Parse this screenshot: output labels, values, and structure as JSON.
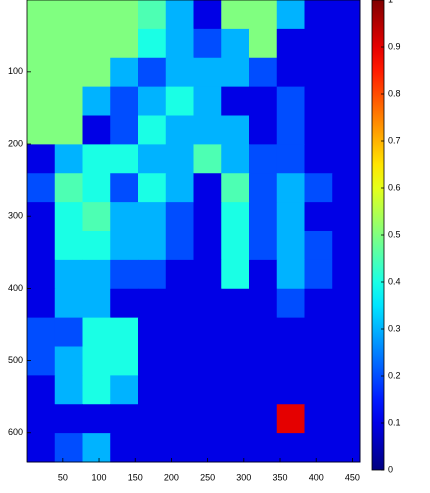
{
  "chart_data": {
    "type": "heatmap",
    "colormap": "jet",
    "xlim": [
      0.5,
      460.5
    ],
    "ylim": [
      0.5,
      640.5
    ],
    "y_reversed": true,
    "xticks": [
      50,
      100,
      150,
      200,
      250,
      300,
      350,
      400,
      450
    ],
    "yticks": [
      100,
      200,
      300,
      400,
      500,
      600
    ],
    "clim": [
      0,
      1
    ],
    "cticks": [
      0,
      0.1,
      0.2,
      0.3,
      0.4,
      0.5,
      0.6,
      0.7,
      0.8,
      0.9,
      1
    ],
    "z": [
      [
        0.5,
        0.5,
        0.5,
        0.5,
        0.45,
        0.3,
        0.1,
        0.5,
        0.5,
        0.3,
        0.1,
        0.1
      ],
      [
        0.5,
        0.5,
        0.5,
        0.5,
        0.4,
        0.3,
        0.2,
        0.3,
        0.5,
        0.1,
        0.1,
        0.1
      ],
      [
        0.5,
        0.5,
        0.5,
        0.3,
        0.2,
        0.3,
        0.3,
        0.3,
        0.2,
        0.1,
        0.1,
        0.1
      ],
      [
        0.5,
        0.5,
        0.3,
        0.2,
        0.3,
        0.4,
        0.3,
        0.1,
        0.1,
        0.2,
        0.1,
        0.1
      ],
      [
        0.5,
        0.5,
        0.1,
        0.2,
        0.4,
        0.3,
        0.3,
        0.3,
        0.1,
        0.2,
        0.1,
        0.1
      ],
      [
        0.1,
        0.3,
        0.4,
        0.4,
        0.3,
        0.3,
        0.45,
        0.3,
        0.2,
        0.2,
        0.1,
        0.1
      ],
      [
        0.2,
        0.45,
        0.4,
        0.2,
        0.4,
        0.3,
        0.1,
        0.45,
        0.2,
        0.3,
        0.2,
        0.1
      ],
      [
        0.1,
        0.4,
        0.45,
        0.3,
        0.3,
        0.2,
        0.1,
        0.4,
        0.2,
        0.3,
        0.1,
        0.1
      ],
      [
        0.1,
        0.4,
        0.4,
        0.3,
        0.3,
        0.2,
        0.1,
        0.4,
        0.2,
        0.3,
        0.2,
        0.1
      ],
      [
        0.1,
        0.3,
        0.3,
        0.2,
        0.2,
        0.1,
        0.1,
        0.4,
        0.1,
        0.3,
        0.2,
        0.1
      ],
      [
        0.1,
        0.3,
        0.3,
        0.1,
        0.1,
        0.1,
        0.1,
        0.1,
        0.1,
        0.2,
        0.1,
        0.1
      ],
      [
        0.2,
        0.2,
        0.4,
        0.4,
        0.1,
        0.1,
        0.1,
        0.1,
        0.1,
        0.1,
        0.1,
        0.1
      ],
      [
        0.2,
        0.3,
        0.4,
        0.4,
        0.1,
        0.1,
        0.1,
        0.1,
        0.1,
        0.1,
        0.1,
        0.1
      ],
      [
        0.1,
        0.3,
        0.4,
        0.3,
        0.1,
        0.1,
        0.1,
        0.1,
        0.1,
        0.1,
        0.1,
        0.1
      ],
      [
        0.1,
        0.1,
        0.1,
        0.1,
        0.1,
        0.1,
        0.1,
        0.1,
        0.1,
        0.9,
        0.1,
        0.1
      ],
      [
        0.1,
        0.2,
        0.3,
        0.1,
        0.1,
        0.1,
        0.1,
        0.1,
        0.1,
        0.1,
        0.1,
        0.1
      ]
    ]
  }
}
